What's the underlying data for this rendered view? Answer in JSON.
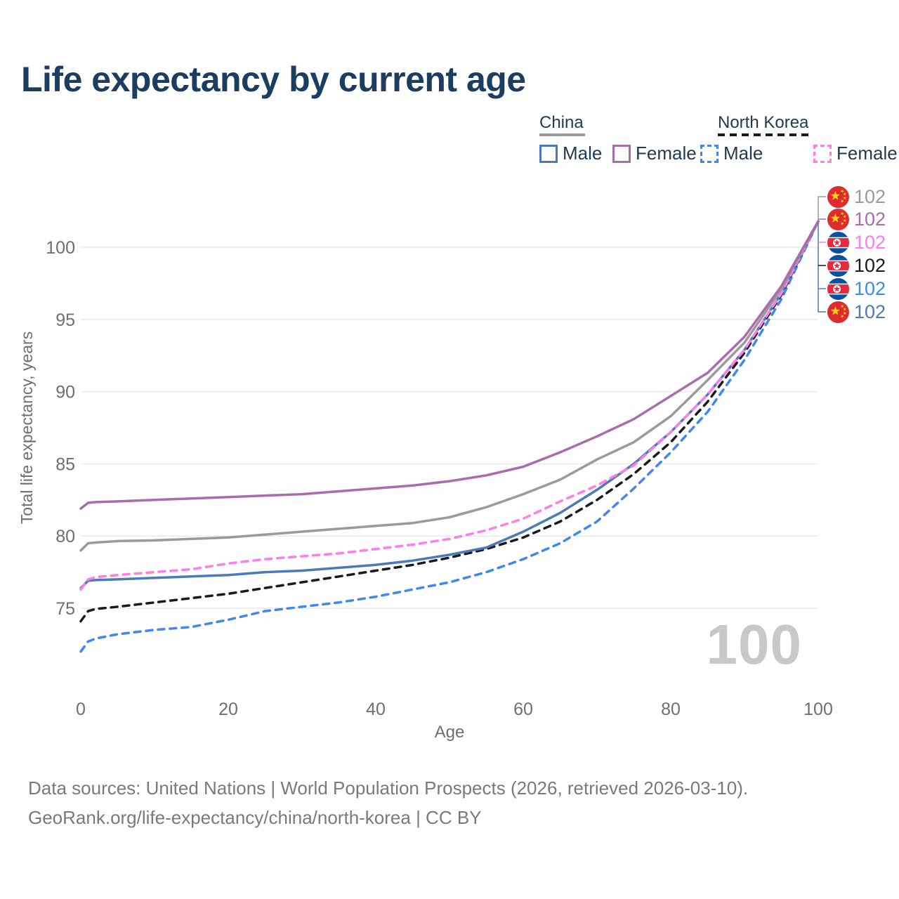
{
  "title": "Life expectancy by current age",
  "legend": {
    "groups": [
      {
        "label": "China",
        "underline_style": "solid",
        "underline_color": "#9a9a9a",
        "items": [
          {
            "label": "Male",
            "color": "#4a7ab9",
            "dash": false
          },
          {
            "label": "Female",
            "color": "#aa6cad",
            "dash": false
          }
        ]
      },
      {
        "label": "North Korea",
        "underline_style": "dashed",
        "underline_color": "#1a1a1a",
        "items": [
          {
            "label": "Male",
            "color": "#4187f0",
            "dash": true
          },
          {
            "label": "Female",
            "color": "#ff7de8",
            "dash": true
          }
        ]
      }
    ]
  },
  "chart_data": {
    "type": "line",
    "title": "Life expectancy by current age",
    "xlabel": "Age",
    "ylabel": "Total life expectancy, years",
    "xlim": [
      0,
      100
    ],
    "ylim": [
      70,
      103
    ],
    "x_ticks": [
      0,
      20,
      40,
      60,
      80,
      100
    ],
    "y_ticks": [
      75,
      80,
      85,
      90,
      95,
      100
    ],
    "grid": "horizontal",
    "legend_position": "top-right",
    "age_counter": "100",
    "x": [
      0,
      1,
      2,
      5,
      10,
      15,
      20,
      25,
      30,
      35,
      40,
      45,
      50,
      55,
      60,
      65,
      70,
      75,
      80,
      85,
      90,
      95,
      100
    ],
    "series": [
      {
        "name": "North Korea Male",
        "country": "North Korea",
        "sex": "Male",
        "color": "#4187f0",
        "line_style": "dashed",
        "end_label": "102",
        "values": [
          72.0,
          72.7,
          72.9,
          73.2,
          73.5,
          73.7,
          74.2,
          74.8,
          75.1,
          75.4,
          75.8,
          76.3,
          76.8,
          77.5,
          78.4,
          79.5,
          81.0,
          83.3,
          85.8,
          88.6,
          92.2,
          96.4,
          101.8
        ]
      },
      {
        "name": "North Korea Both sexes",
        "country": "North Korea",
        "sex": "Both",
        "color": "#1a1a1a",
        "line_style": "dashed",
        "end_label": "102",
        "values": [
          74.1,
          74.8,
          74.95,
          75.1,
          75.4,
          75.7,
          76.0,
          76.4,
          76.8,
          77.2,
          77.6,
          78.0,
          78.5,
          79.1,
          79.9,
          81.0,
          82.5,
          84.3,
          86.5,
          89.3,
          92.7,
          96.7,
          101.8
        ]
      },
      {
        "name": "China Male",
        "country": "China",
        "sex": "Male",
        "color": "#4a7ab9",
        "line_style": "solid",
        "end_label": "102",
        "values": [
          76.4,
          76.9,
          76.95,
          77.0,
          77.1,
          77.2,
          77.3,
          77.5,
          77.6,
          77.8,
          78.0,
          78.3,
          78.7,
          79.2,
          80.3,
          81.6,
          83.2,
          85.0,
          87.2,
          89.8,
          92.9,
          96.8,
          101.8
        ]
      },
      {
        "name": "North Korea Female",
        "country": "North Korea",
        "sex": "Female",
        "color": "#ff7de8",
        "line_style": "dashed",
        "end_label": "102",
        "values": [
          76.3,
          77.0,
          77.15,
          77.3,
          77.5,
          77.7,
          78.1,
          78.4,
          78.6,
          78.8,
          79.1,
          79.4,
          79.8,
          80.4,
          81.2,
          82.4,
          83.5,
          84.9,
          87.2,
          89.8,
          92.9,
          96.8,
          101.8
        ]
      },
      {
        "name": "China Both sexes",
        "country": "China",
        "sex": "Both",
        "color": "#9a9a9a",
        "line_style": "solid",
        "end_label": "102",
        "values": [
          79.0,
          79.5,
          79.55,
          79.65,
          79.7,
          79.8,
          79.9,
          80.1,
          80.3,
          80.5,
          80.7,
          80.9,
          81.3,
          82.0,
          82.9,
          83.9,
          85.3,
          86.5,
          88.3,
          90.8,
          93.4,
          97.1,
          101.8
        ]
      },
      {
        "name": "China Female",
        "country": "China",
        "sex": "Female",
        "color": "#aa6cad",
        "line_style": "solid",
        "end_label": "102",
        "values": [
          81.9,
          82.3,
          82.35,
          82.4,
          82.5,
          82.6,
          82.7,
          82.8,
          82.9,
          83.1,
          83.3,
          83.5,
          83.8,
          84.2,
          84.8,
          85.8,
          86.9,
          88.1,
          89.7,
          91.3,
          93.8,
          97.3,
          101.8
        ]
      }
    ],
    "end_labels": [
      {
        "series": "China Both sexes",
        "flag": "china-flag-icon",
        "value": "102",
        "color": "#9a9a9a"
      },
      {
        "series": "China Female",
        "flag": "china-flag-icon",
        "value": "102",
        "color": "#aa6cad"
      },
      {
        "series": "North Korea Female",
        "flag": "north-korea-flag-icon",
        "value": "102",
        "color": "#ff7de8"
      },
      {
        "series": "North Korea Both sexes",
        "flag": "north-korea-flag-icon",
        "value": "102",
        "color": "#1a1a1a"
      },
      {
        "series": "North Korea Male",
        "flag": "north-korea-flag-icon",
        "value": "102",
        "color": "#4187f0"
      },
      {
        "series": "China Male",
        "flag": "china-flag-icon",
        "value": "102",
        "color": "#4a7ab9"
      }
    ]
  },
  "footer": {
    "line1": "Data sources: United Nations | World Population Prospects (2026, retrieved 2026-03-10).",
    "line2": "GeoRank.org/life-expectancy/china/north-korea | CC BY"
  }
}
